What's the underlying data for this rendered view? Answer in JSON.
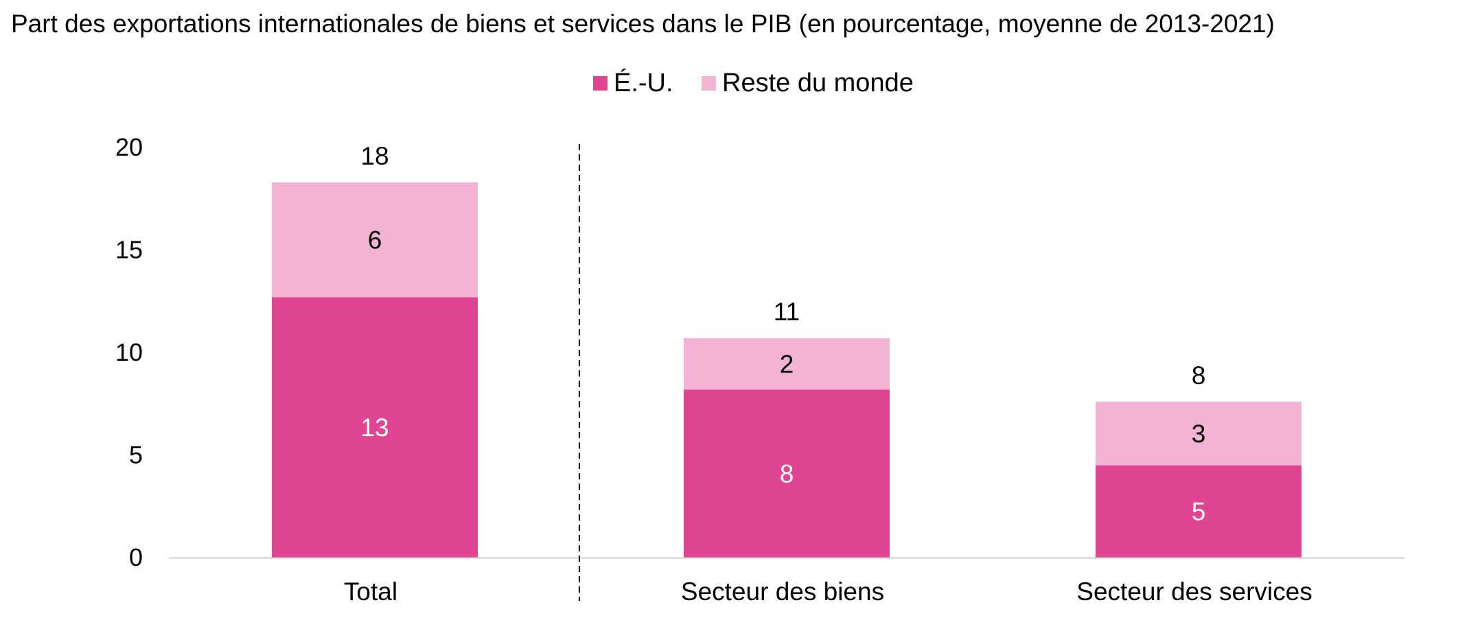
{
  "chart_data": {
    "type": "bar",
    "stacked": true,
    "title": "Part des exportations internationales de biens et services dans le PIB (en pourcentage, moyenne de 2013-2021)",
    "categories": [
      "Total",
      "Secteur des biens",
      "Secteur des services"
    ],
    "series": [
      {
        "name": "É.-U.",
        "values": [
          12.7,
          8.2,
          4.5
        ],
        "labels": [
          "13",
          "8",
          "5"
        ],
        "color": "#e04592",
        "label_color": "#ffffff"
      },
      {
        "name": "Reste du monde",
        "values": [
          5.6,
          2.5,
          3.1
        ],
        "labels": [
          "6",
          "2",
          "3"
        ],
        "color": "#f2b3d4",
        "label_color": "#000000"
      }
    ],
    "totals": [
      "18",
      "11",
      "8"
    ],
    "ylim": [
      0,
      20
    ],
    "yticks": [
      "0",
      "5",
      "10",
      "15",
      "20"
    ],
    "xlabel": "",
    "ylabel": "",
    "grid": false,
    "legend_position": "top-center",
    "separator_after_category": 0
  }
}
